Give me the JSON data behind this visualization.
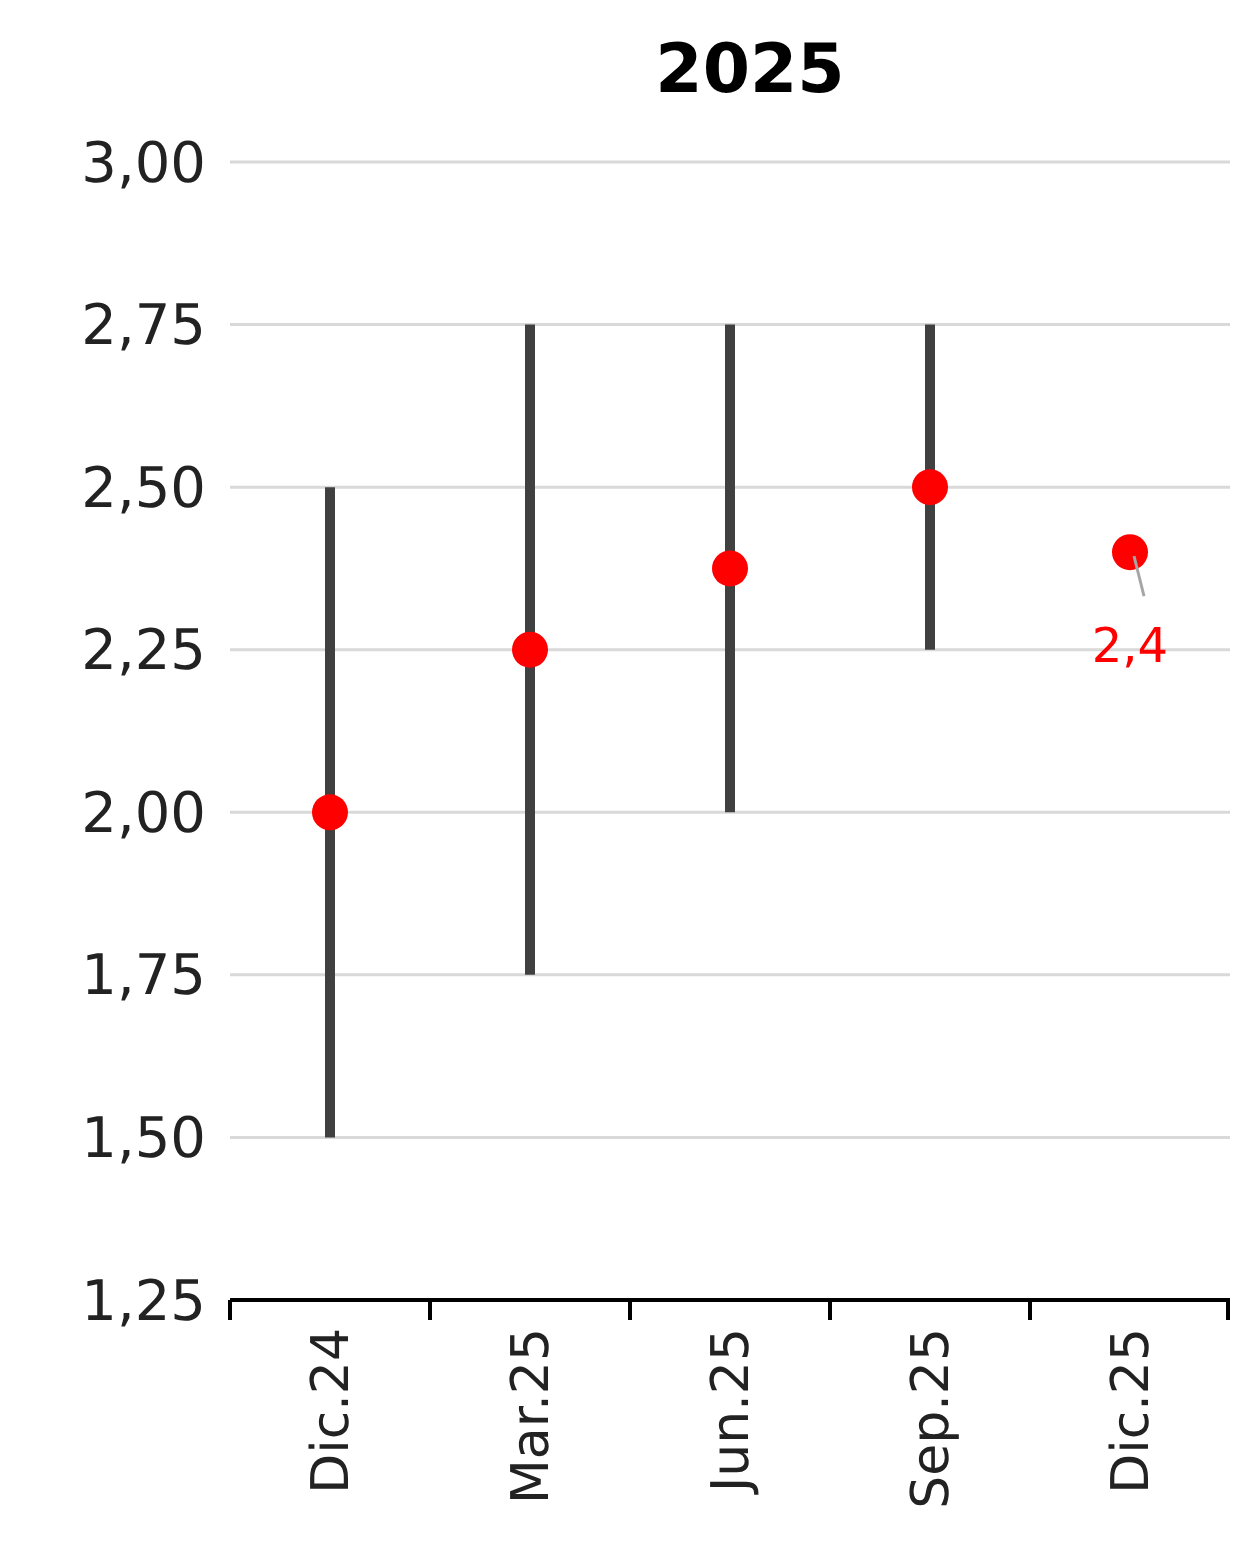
{
  "chart_data": {
    "type": "scatter",
    "title": "2025",
    "categories": [
      "Dic.24",
      "Mar.25",
      "Jun.25",
      "Sep.25",
      "Dic.25"
    ],
    "series": [
      {
        "color": "#ff0000",
        "values": [
          2.0,
          2.25,
          2.375,
          2.5,
          2.4
        ],
        "errors": [
          [
            1.5,
            2.5
          ],
          [
            1.75,
            2.75
          ],
          [
            2.0,
            2.75
          ],
          [
            2.25,
            2.75
          ],
          null
        ],
        "value_labels": [
          null,
          null,
          null,
          null,
          "2,4"
        ]
      }
    ],
    "ylim": [
      1.25,
      3
    ],
    "yticks": [
      {
        "value": 1.25,
        "label": "1,25"
      },
      {
        "value": 1.5,
        "label": "1,50"
      },
      {
        "value": 1.75,
        "label": "1,75"
      },
      {
        "value": 2,
        "label": "2,00"
      },
      {
        "value": 2.25,
        "label": "2,25"
      },
      {
        "value": 2.5,
        "label": "2,50"
      },
      {
        "value": 2.75,
        "label": "2,75"
      },
      {
        "value": 3,
        "label": "3,00"
      }
    ],
    "grid": "y",
    "marker": "circle"
  }
}
